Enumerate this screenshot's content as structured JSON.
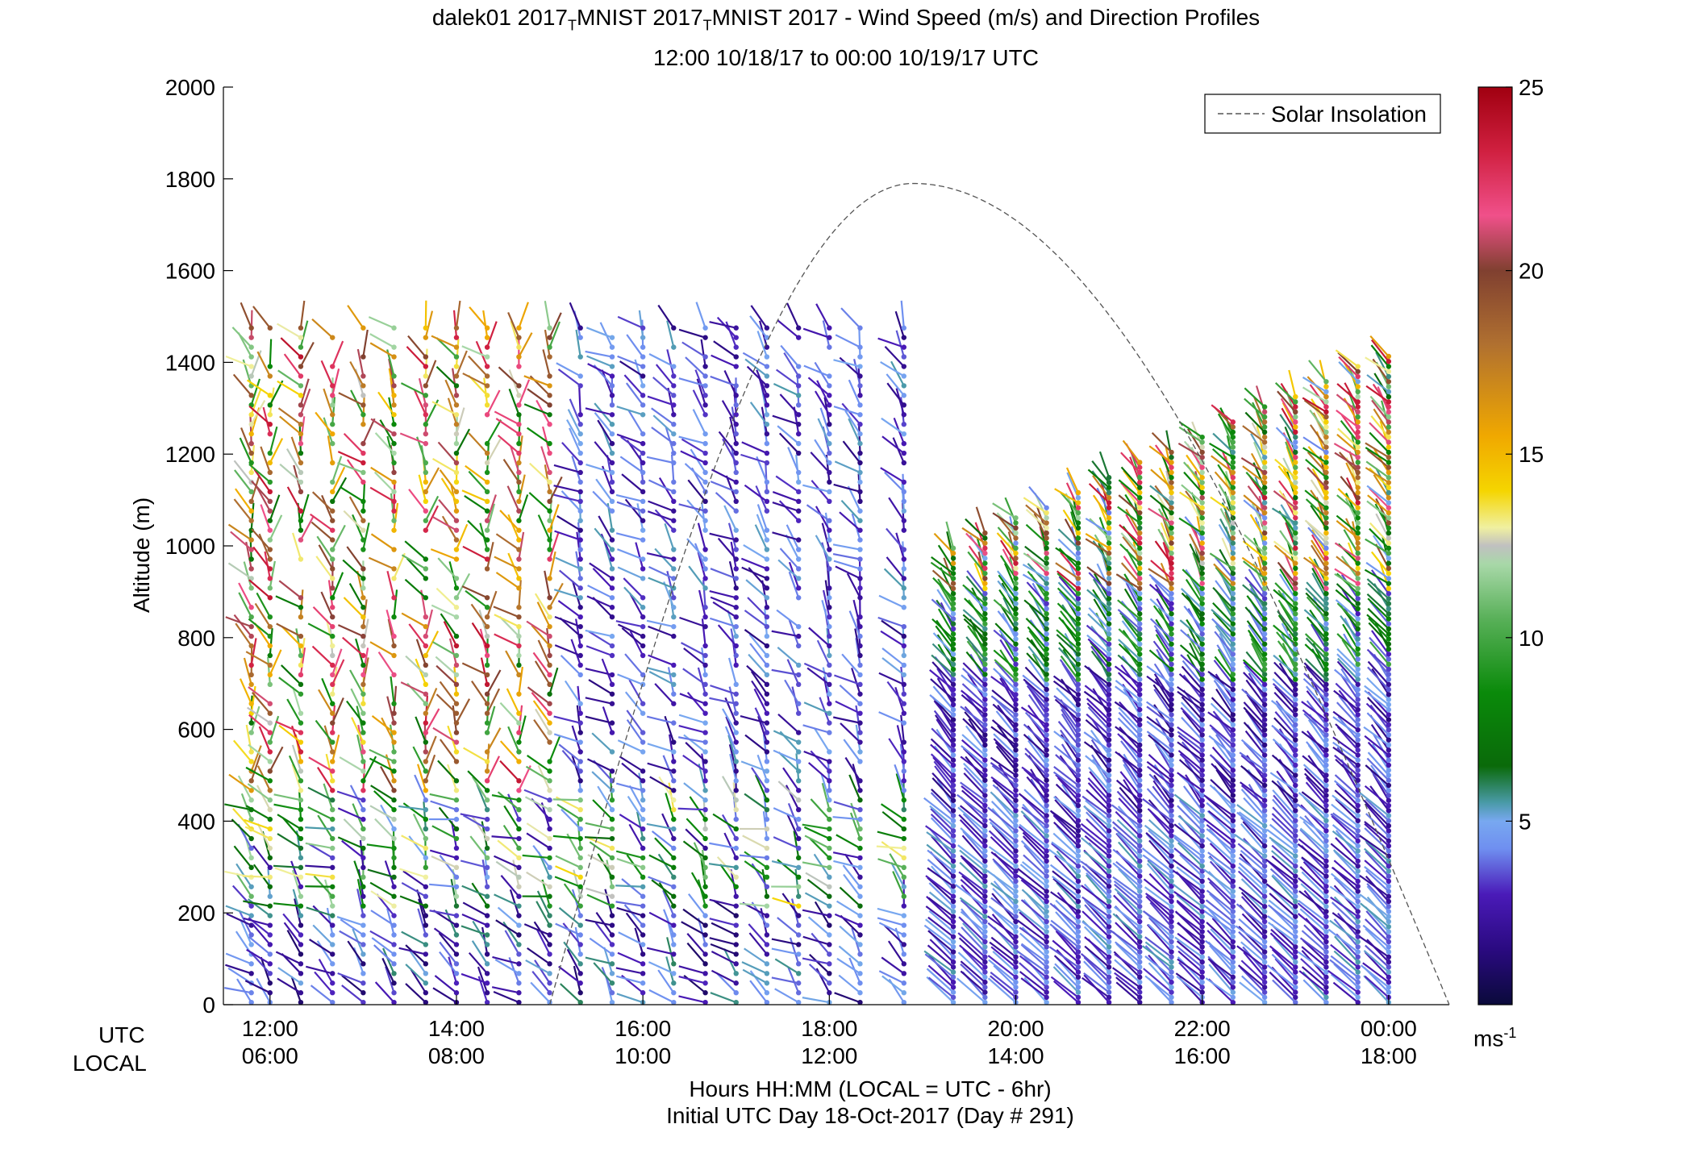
{
  "chart_data": {
    "type": "wind-barb-profile",
    "title_line1": "dalek01 2017",
    "title_sub1": "T",
    "title_mid": "MNIST 2017",
    "title_sub2": "T",
    "title_end": "MNIST 2017 - Wind Speed (m/s) and Direction Profiles",
    "title_line2": "12:00 10/18/17 to 00:00 10/19/17  UTC",
    "ylabel": "Altitude (m)",
    "ylim": [
      0,
      2000
    ],
    "yticks": [
      "0",
      "200",
      "400",
      "600",
      "800",
      "1000",
      "1200",
      "1400",
      "1600",
      "1800",
      "2000"
    ],
    "xlim_hours": [
      11.5,
      24.65
    ],
    "xticks_hours": [
      12,
      14,
      16,
      18,
      20,
      22,
      24
    ],
    "xticks_utc": [
      "12:00",
      "14:00",
      "16:00",
      "18:00",
      "20:00",
      "22:00",
      "00:00"
    ],
    "xticks_local": [
      "06:00",
      "08:00",
      "10:00",
      "12:00",
      "14:00",
      "16:00",
      "18:00"
    ],
    "row_label_utc": "UTC",
    "row_label_local": "LOCAL",
    "xlabel": "Hours HH:MM  (LOCAL = UTC - 6hr)",
    "xlabel2": "Initial UTC Day 18-Oct-2017 (Day # 291)",
    "legend_label": "Solar Insolation",
    "legend_position": "top-right",
    "colorbar": {
      "range": [
        0,
        25
      ],
      "ticks": [
        "5",
        "10",
        "15",
        "20",
        "25"
      ],
      "unit_base": "ms",
      "unit_exp": "-1"
    },
    "profile_times_hours": [
      11.8,
      12.0,
      12.33,
      12.67,
      13.0,
      13.33,
      13.67,
      14.0,
      14.33,
      14.67,
      15.0,
      15.33,
      15.67,
      16.0,
      16.33,
      16.67,
      17.0,
      17.33,
      17.67,
      18.0,
      18.33,
      18.8,
      19.33,
      19.67,
      20.0,
      20.33,
      20.67,
      21.0,
      21.33,
      21.67,
      22.0,
      22.33,
      22.67,
      23.0,
      23.33,
      23.67,
      24.0
    ],
    "solar_insolation_curve": {
      "start_hour": 15.0,
      "peak_hour": 18.9,
      "peak_altitude_m": 1790,
      "end_hour": 24.65
    }
  }
}
